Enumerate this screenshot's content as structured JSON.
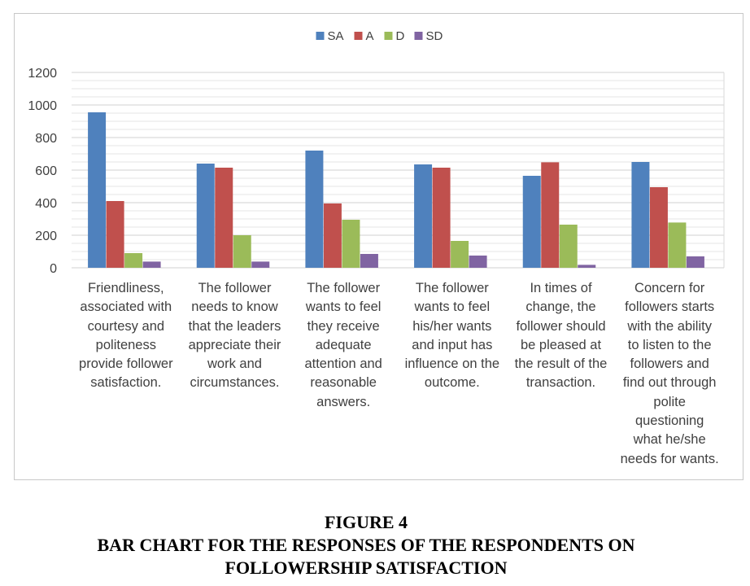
{
  "chart_data": {
    "type": "bar",
    "categories": [
      "Friendliness,\nassociated with\ncourtesy and\npoliteness\nprovide follower\nsatisfaction.",
      "The follower\nneeds to know\nthat the leaders\nappreciate their\nwork and\ncircumstances.",
      "The follower\nwants to feel\nthey receive\nadequate\nattention and\nreasonable\nanswers.",
      "The follower\nwants to feel\nhis/her wants\nand input has\ninfluence on the\noutcome.",
      "In times of\nchange, the\nfollower should\nbe pleased at\nthe result of the\ntransaction.",
      "Concern for\nfollowers starts\nwith the ability\nto listen to the\nfollowers and\nfind out through\npolite\nquestioning\nwhat he/she\nneeds for wants."
    ],
    "series": [
      {
        "name": "SA",
        "color": "#4f81bd",
        "values": [
          955,
          640,
          720,
          635,
          565,
          650
        ]
      },
      {
        "name": "A",
        "color": "#c0504d",
        "values": [
          410,
          615,
          395,
          615,
          648,
          495
        ]
      },
      {
        "name": "D",
        "color": "#9bbb59",
        "values": [
          90,
          200,
          295,
          165,
          265,
          278
        ]
      },
      {
        "name": "SD",
        "color": "#8064a2",
        "values": [
          38,
          38,
          85,
          75,
          18,
          70
        ]
      }
    ],
    "ylim": [
      0,
      1200
    ],
    "yticks": [
      0,
      200,
      400,
      600,
      800,
      1000,
      1200
    ],
    "grid": true,
    "legend": "top-center"
  },
  "caption": {
    "figure": "FIGURE 4",
    "line1": "BAR CHART FOR THE RESPONSES OF THE RESPONDENTS ON",
    "line2": "FOLLOWERSHIP SATISFACTION"
  }
}
